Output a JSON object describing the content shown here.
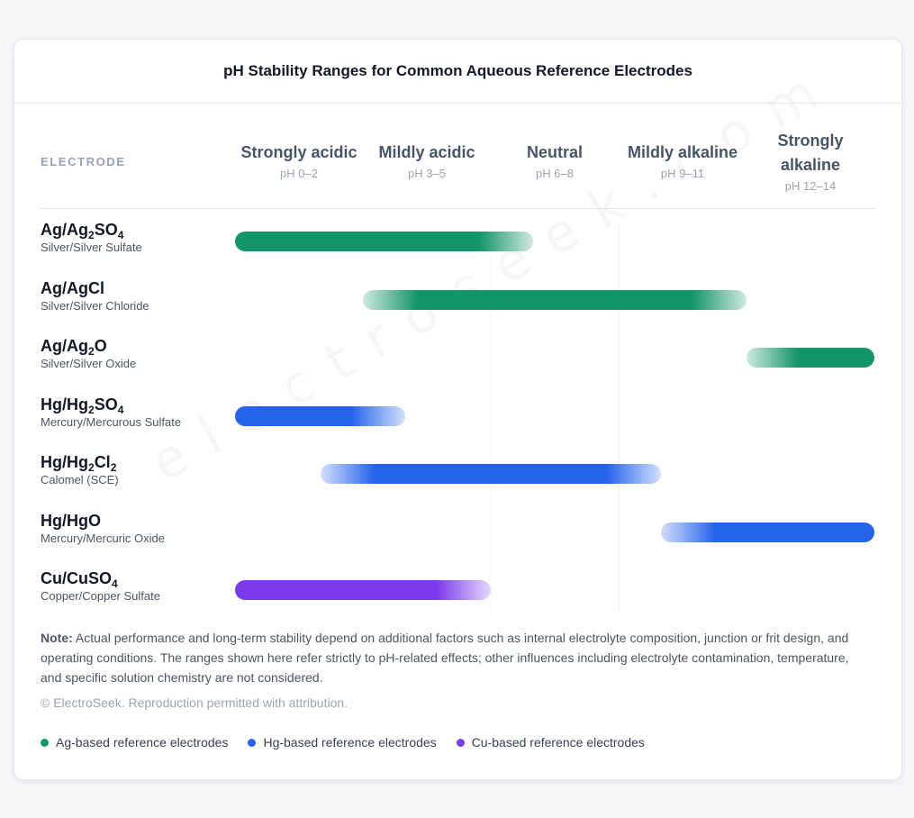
{
  "chart_data": {
    "type": "range-bar",
    "title": "pH Stability Ranges for Common Aqueous Reference Electrodes",
    "row_header": "ELECTRODE",
    "columns": [
      {
        "label": "Strongly acidic",
        "range": "pH 0–2"
      },
      {
        "label": "Mildly acidic",
        "range": "pH 3–5"
      },
      {
        "label": "Neutral",
        "range": "pH 6–8"
      },
      {
        "label": "Mildly alkaline",
        "range": "pH 9–11"
      },
      {
        "label": "Strongly alkaline",
        "range": "pH 12–14"
      }
    ],
    "rows": [
      {
        "formula": "Ag/Ag<sub>2</sub>SO<sub>4</sub>",
        "name": "Silver/Silver Sulfate",
        "group": "Ag",
        "start_col": 0,
        "end_col": 2.33,
        "fade_in": false,
        "fade_out": true
      },
      {
        "formula": "Ag/AgCl",
        "name": "Silver/Silver Chloride",
        "group": "Ag",
        "start_col": 1.0,
        "end_col": 4.0,
        "fade_in": true,
        "fade_out": true
      },
      {
        "formula": "Ag/Ag<sub>2</sub>O",
        "name": "Silver/Silver Oxide",
        "group": "Ag",
        "start_col": 4.0,
        "end_col": 5.0,
        "fade_in": true,
        "fade_out": false
      },
      {
        "formula": "Hg/Hg<sub>2</sub>SO<sub>4</sub>",
        "name": "Mercury/Mercurous Sulfate",
        "group": "Hg",
        "start_col": 0,
        "end_col": 1.33,
        "fade_in": false,
        "fade_out": true
      },
      {
        "formula": "Hg/Hg<sub>2</sub>Cl<sub>2</sub>",
        "name": "Calomel (SCE)",
        "group": "Hg",
        "start_col": 0.67,
        "end_col": 3.33,
        "fade_in": true,
        "fade_out": true
      },
      {
        "formula": "Hg/HgO",
        "name": "Mercury/Mercuric Oxide",
        "group": "Hg",
        "start_col": 3.33,
        "end_col": 5.0,
        "fade_in": true,
        "fade_out": false
      },
      {
        "formula": "Cu/CuSO<sub>4</sub>",
        "name": "Copper/Copper Sulfate",
        "group": "Cu",
        "start_col": 0,
        "end_col": 2.0,
        "fade_in": false,
        "fade_out": true
      }
    ],
    "colors": {
      "Ag": "#13956a",
      "Hg": "#2563eb",
      "Cu": "#7c3aed"
    },
    "legend": [
      {
        "group": "Ag",
        "label": "Ag-based reference electrodes"
      },
      {
        "group": "Hg",
        "label": "Hg-based reference electrodes"
      },
      {
        "group": "Cu",
        "label": "Cu-based reference electrodes"
      }
    ]
  },
  "note": {
    "label": "Note:",
    "text": " Actual performance and long-term stability depend on additional factors such as internal electrolyte composition, junction or frit design, and operating conditions. The ranges shown here refer strictly to pH-related effects; other influences including electrolyte contamination, temperature, and specific solution chemistry are not considered."
  },
  "copyright": "© ElectroSeek. Reproduction permitted with attribution.",
  "watermark": "electroseek.com"
}
